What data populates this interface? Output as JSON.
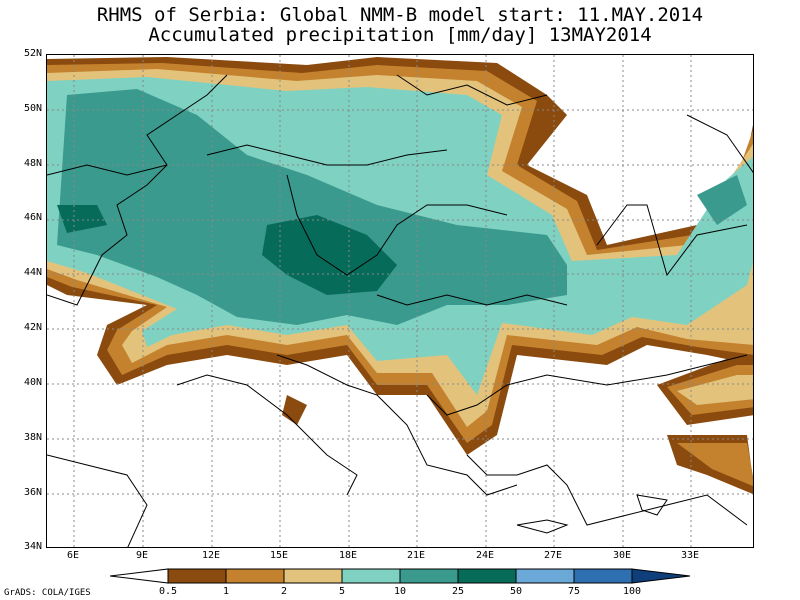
{
  "title": {
    "line1": "RHMS of Serbia: Global NMM-B model   start: 11.MAY.2014",
    "line2": "Accumulated precipitation [mm/day]  13MAY2014"
  },
  "map": {
    "lon_range": [
      4,
      35
    ],
    "lat_range": [
      34,
      52
    ],
    "lat_labels": [
      "52N",
      "50N",
      "48N",
      "46N",
      "44N",
      "42N",
      "40N",
      "38N",
      "36N",
      "34N"
    ],
    "lat_values": [
      52,
      50,
      48,
      46,
      44,
      42,
      40,
      38,
      36,
      34
    ],
    "lon_labels": [
      "6E",
      "9E",
      "12E",
      "15E",
      "18E",
      "21E",
      "24E",
      "27E",
      "30E",
      "33E"
    ],
    "lon_values": [
      6,
      9,
      12,
      15,
      18,
      21,
      24,
      27,
      30,
      33
    ],
    "grid": "dotted"
  },
  "legend": {
    "labels": [
      "0.5",
      "1",
      "2",
      "5",
      "10",
      "25",
      "50",
      "75",
      "100"
    ],
    "colors": [
      "#8b4a0e",
      "#c4822e",
      "#e3c37c",
      "#7fd1c2",
      "#3a9a8e",
      "#076b5a",
      "#6aa8d8",
      "#2d6fb0",
      "#0e3f7a"
    ]
  },
  "credit": "GrADS: COLA/IGES",
  "colors": {
    "dark_brown": "#8b4a0e",
    "brown": "#c4822e",
    "tan": "#e3c37c",
    "light_teal": "#7fd1c2",
    "teal": "#3a9a8e",
    "dark_teal": "#076b5a"
  }
}
